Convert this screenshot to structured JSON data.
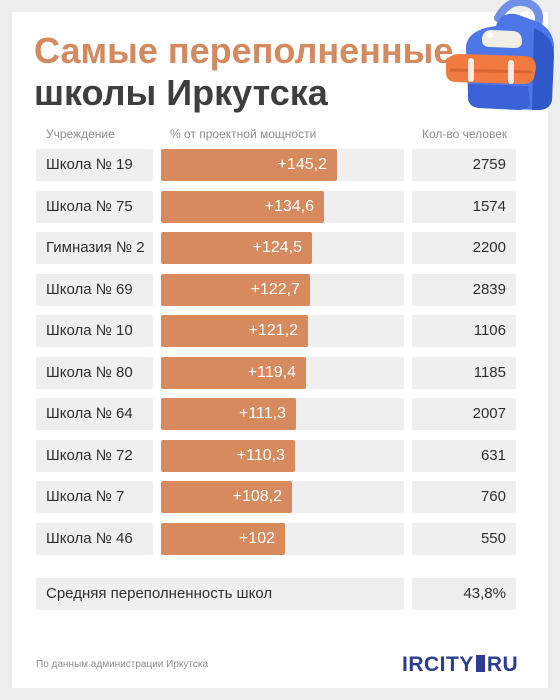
{
  "title_line1": "Самые переполненные",
  "title_line2": "школы Иркутска",
  "headers": {
    "name": "Учреждение",
    "percent": "% от проектной мощности",
    "count": "Кол-во человек"
  },
  "chart_data": {
    "type": "bar",
    "orientation": "horizontal",
    "categories": [
      "Школа № 19",
      "Школа № 75",
      "Гимназия № 2",
      "Школа № 69",
      "Школа № 10",
      "Школа № 80",
      "Школа № 64",
      "Школа № 72",
      "Школа № 7",
      "Школа № 46"
    ],
    "series": [
      {
        "name": "% от проектной мощности",
        "values": [
          145.2,
          134.6,
          124.5,
          122.7,
          121.2,
          119.4,
          111.3,
          110.3,
          108.2,
          102
        ],
        "labels": [
          "+145,2",
          "+134,6",
          "+124,5",
          "+122,7",
          "+121,2",
          "+119,4",
          "+111,3",
          "+110,3",
          "+108,2",
          "+102"
        ]
      },
      {
        "name": "Кол-во человек",
        "values": [
          "2759",
          "1574",
          "2200",
          "2839",
          "1106",
          "1185",
          "2007",
          "631",
          "760",
          "550"
        ]
      }
    ],
    "xlim": [
      0,
      200
    ]
  },
  "summary": {
    "label": "Средняя переполненность школ",
    "value": "43,8%"
  },
  "source": "По данным администрации Иркутска",
  "logo": {
    "left": "IRCITY",
    "right": "RU"
  },
  "colors": {
    "accent": "#d68a5e",
    "title_accent": "#d4895f",
    "logo": "#2a3d91"
  },
  "icons": [
    "backpack-icon"
  ]
}
